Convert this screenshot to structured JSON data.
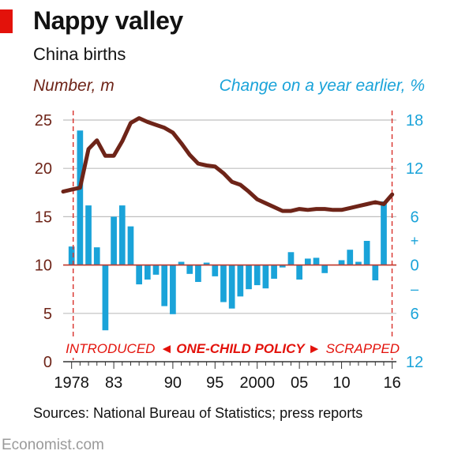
{
  "header": {
    "title": "Nappy valley",
    "subtitle": "China births"
  },
  "footer": {
    "source": "Sources: National Bureau of Statistics; press reports",
    "brand": "Economist.com"
  },
  "colors": {
    "line": "#6e2418",
    "bars": "#1aa3d9",
    "accent_red": "#e3120b",
    "dashed": "#d9302a",
    "grid": "#bfbfbf",
    "zero_line": "#c0392b",
    "left_axis_text": "#6e2418",
    "right_axis_text": "#1aa3d9"
  },
  "chart_data": {
    "type": "bar+line",
    "left_axis": {
      "label": "Number, m",
      "range": [
        0,
        25
      ],
      "ticks": [
        0,
        5,
        10,
        15,
        20,
        25
      ]
    },
    "right_axis": {
      "label": "Change on a year earlier, %",
      "range": [
        -12,
        18
      ],
      "ticks": [
        {
          "value": 18,
          "label": "18"
        },
        {
          "value": 12,
          "label": "12"
        },
        {
          "value": 6,
          "label": "6"
        },
        {
          "value": 0,
          "label": "0"
        },
        {
          "value": -6,
          "label": "6"
        },
        {
          "value": -12,
          "label": "12"
        }
      ],
      "plus_sign": "+",
      "minus_sign": "–"
    },
    "x_ticks": [
      {
        "year": 1978,
        "label": "1978"
      },
      {
        "year": 1983,
        "label": "83"
      },
      {
        "year": 1990,
        "label": "90"
      },
      {
        "year": 1995,
        "label": "95"
      },
      {
        "year": 2000,
        "label": "2000"
      },
      {
        "year": 2005,
        "label": "05"
      },
      {
        "year": 2010,
        "label": "10"
      },
      {
        "year": 2016,
        "label": "16"
      }
    ],
    "x_range": [
      1977,
      2016.5
    ],
    "annotation": {
      "introduced": "INTRODUCED",
      "arrow_left": "◄",
      "policy": "ONE-CHILD POLICY",
      "arrow_right": "►",
      "scrapped": "SCRAPPED",
      "start_year": 1978,
      "end_year": 2015.8
    },
    "births_series": {
      "name": "Number, m",
      "x": [
        1977,
        1978,
        1979,
        1980,
        1981,
        1982,
        1983,
        1984,
        1985,
        1986,
        1987,
        1988,
        1989,
        1990,
        1991,
        1992,
        1993,
        1994,
        1995,
        1996,
        1997,
        1998,
        1999,
        2000,
        2001,
        2002,
        2003,
        2004,
        2005,
        2006,
        2007,
        2008,
        2009,
        2010,
        2011,
        2012,
        2013,
        2014,
        2015,
        2016
      ],
      "values": [
        17.6,
        17.8,
        18.0,
        22.0,
        22.9,
        21.3,
        21.3,
        22.8,
        24.7,
        25.2,
        24.8,
        24.5,
        24.2,
        23.7,
        22.6,
        21.4,
        20.5,
        20.3,
        20.2,
        19.5,
        18.6,
        18.3,
        17.6,
        16.8,
        16.4,
        16.0,
        15.6,
        15.6,
        15.8,
        15.7,
        15.8,
        15.8,
        15.7,
        15.7,
        15.9,
        16.1,
        16.3,
        16.5,
        16.3,
        17.3
      ]
    },
    "change_series": {
      "name": "Change on a year earlier, %",
      "x": [
        1978,
        1979,
        1980,
        1981,
        1982,
        1983,
        1984,
        1985,
        1986,
        1987,
        1988,
        1989,
        1990,
        1991,
        1992,
        1993,
        1994,
        1995,
        1996,
        1997,
        1998,
        1999,
        2000,
        2001,
        2002,
        2003,
        2004,
        2005,
        2006,
        2007,
        2008,
        2009,
        2010,
        2011,
        2012,
        2013,
        2014,
        2015,
        2016
      ],
      "values": [
        2.3,
        16.7,
        7.4,
        2.2,
        -8.1,
        6.0,
        7.4,
        4.8,
        -2.4,
        -1.8,
        -1.2,
        -5.1,
        -6.1,
        0.4,
        -1.1,
        -2.1,
        0.3,
        -1.4,
        -4.6,
        -5.4,
        -3.9,
        -3.0,
        -2.5,
        -2.9,
        -1.7,
        -0.3,
        1.6,
        -1.8,
        0.8,
        0.9,
        -1.0,
        0.0,
        0.6,
        1.9,
        0.4,
        3.0,
        -1.9,
        7.9,
        0.0
      ]
    }
  }
}
